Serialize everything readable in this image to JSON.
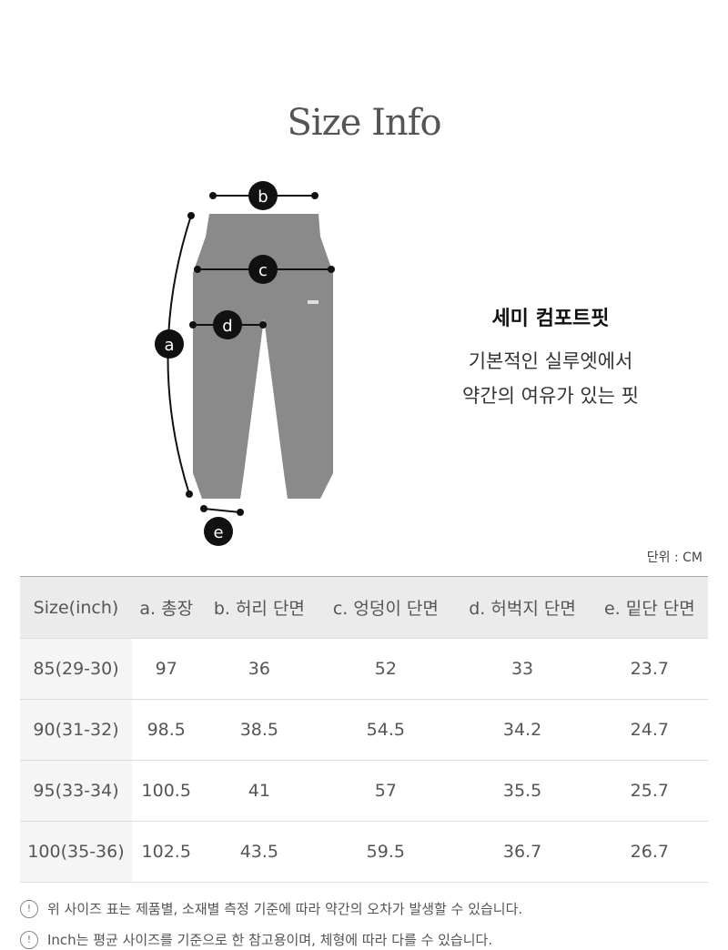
{
  "title": "Size Info",
  "diagram": {
    "labels": [
      "a",
      "b",
      "c",
      "d",
      "e"
    ]
  },
  "fit": {
    "name": "세미 컴포트핏",
    "desc": [
      "기본적인 실루엣에서",
      "약간의 여유가 있는 핏"
    ]
  },
  "unit": "단위 : CM",
  "table": {
    "headers": [
      "Size(inch)",
      "a. 총장",
      "b. 허리 단면",
      "c. 엉덩이 단면",
      "d. 허벅지 단면",
      "e. 밑단 단면"
    ],
    "rows": [
      [
        "85(29-30)",
        "97",
        "36",
        "52",
        "33",
        "23.7"
      ],
      [
        "90(31-32)",
        "98.5",
        "38.5",
        "54.5",
        "34.2",
        "24.7"
      ],
      [
        "95(33-34)",
        "100.5",
        "41",
        "57",
        "35.5",
        "25.7"
      ],
      [
        "100(35-36)",
        "102.5",
        "43.5",
        "59.5",
        "36.7",
        "26.7"
      ]
    ]
  },
  "notes": [
    "위 사이즈 표는 제품별, 소재별 측정 기준에 따라 약간의 오차가 발생할 수 있습니다.",
    "Inch는 평균 사이즈를 기준으로 한 참고용이며, 체형에 따라 다를 수 있습니다."
  ],
  "note_icon": "!"
}
